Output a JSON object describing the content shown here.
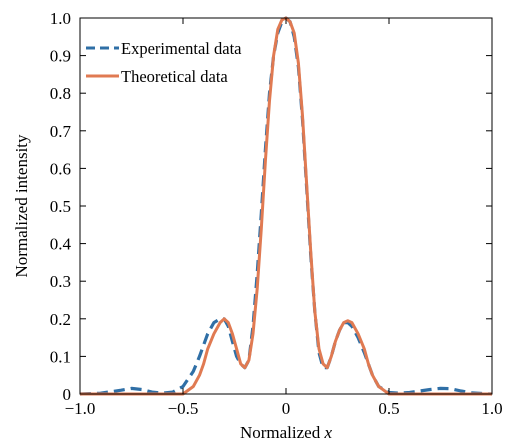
{
  "chart_data": {
    "type": "line",
    "xlabel_prefix": "Normalized ",
    "xlabel_var": "x",
    "ylabel": "Normalized intensity",
    "xlim": [
      -1.0,
      1.0
    ],
    "ylim": [
      0.0,
      1.0
    ],
    "x_ticks": [
      -1.0,
      -0.5,
      0,
      0.5,
      1.0
    ],
    "x_tick_labels": [
      "−1.0",
      "−0.5",
      "0",
      "0.5",
      "1.0"
    ],
    "y_ticks": [
      0,
      0.1,
      0.2,
      0.3,
      0.4,
      0.5,
      0.6,
      0.7,
      0.8,
      0.9,
      1.0
    ],
    "y_tick_labels": [
      "0",
      "0.1",
      "0.2",
      "0.3",
      "0.4",
      "0.5",
      "0.6",
      "0.7",
      "0.8",
      "0.9",
      "1.0"
    ],
    "grid": false,
    "legend_position": "top-left",
    "series": [
      {
        "name": "Experimental data",
        "style": "dashed",
        "color": "#2f6fa6",
        "x": [
          -1.0,
          -0.9,
          -0.8,
          -0.75,
          -0.7,
          -0.65,
          -0.6,
          -0.55,
          -0.5,
          -0.45,
          -0.42,
          -0.4,
          -0.38,
          -0.35,
          -0.32,
          -0.3,
          -0.28,
          -0.26,
          -0.24,
          -0.22,
          -0.2,
          -0.18,
          -0.16,
          -0.14,
          -0.12,
          -0.1,
          -0.08,
          -0.06,
          -0.04,
          -0.02,
          0.0,
          0.02,
          0.04,
          0.06,
          0.08,
          0.1,
          0.12,
          0.14,
          0.16,
          0.18,
          0.2,
          0.22,
          0.24,
          0.26,
          0.28,
          0.3,
          0.32,
          0.35,
          0.38,
          0.4,
          0.42,
          0.45,
          0.5,
          0.55,
          0.6,
          0.65,
          0.7,
          0.75,
          0.8,
          0.85,
          0.9,
          1.0
        ],
        "y": [
          0.0,
          0.002,
          0.01,
          0.015,
          0.012,
          0.005,
          0.002,
          0.005,
          0.02,
          0.06,
          0.1,
          0.13,
          0.16,
          0.19,
          0.2,
          0.2,
          0.18,
          0.14,
          0.1,
          0.08,
          0.07,
          0.09,
          0.18,
          0.32,
          0.48,
          0.65,
          0.8,
          0.9,
          0.96,
          0.99,
          1.0,
          0.99,
          0.95,
          0.87,
          0.73,
          0.55,
          0.37,
          0.22,
          0.11,
          0.07,
          0.07,
          0.1,
          0.14,
          0.17,
          0.19,
          0.19,
          0.18,
          0.15,
          0.11,
          0.08,
          0.05,
          0.02,
          0.004,
          0.002,
          0.004,
          0.008,
          0.012,
          0.015,
          0.014,
          0.008,
          0.003,
          0.0
        ]
      },
      {
        "name": "Theoretical data",
        "style": "solid",
        "color": "#e07a52",
        "x": [
          -1.0,
          -0.7,
          -0.55,
          -0.5,
          -0.45,
          -0.42,
          -0.4,
          -0.38,
          -0.35,
          -0.32,
          -0.3,
          -0.28,
          -0.26,
          -0.24,
          -0.22,
          -0.2,
          -0.18,
          -0.16,
          -0.14,
          -0.12,
          -0.1,
          -0.08,
          -0.06,
          -0.04,
          -0.02,
          0.0,
          0.02,
          0.04,
          0.06,
          0.08,
          0.1,
          0.12,
          0.14,
          0.16,
          0.18,
          0.2,
          0.22,
          0.24,
          0.26,
          0.28,
          0.3,
          0.32,
          0.35,
          0.38,
          0.4,
          0.42,
          0.45,
          0.5,
          0.55,
          0.7,
          1.0
        ],
        "y": [
          0.0,
          0.0,
          0.0,
          0.0,
          0.02,
          0.05,
          0.08,
          0.12,
          0.16,
          0.19,
          0.2,
          0.19,
          0.16,
          0.12,
          0.08,
          0.07,
          0.09,
          0.16,
          0.28,
          0.44,
          0.62,
          0.78,
          0.9,
          0.97,
          0.995,
          1.0,
          0.99,
          0.96,
          0.88,
          0.74,
          0.56,
          0.38,
          0.22,
          0.12,
          0.08,
          0.07,
          0.1,
          0.14,
          0.17,
          0.19,
          0.195,
          0.19,
          0.16,
          0.12,
          0.08,
          0.05,
          0.02,
          0.0,
          0.0,
          0.0,
          0.0
        ]
      }
    ]
  }
}
